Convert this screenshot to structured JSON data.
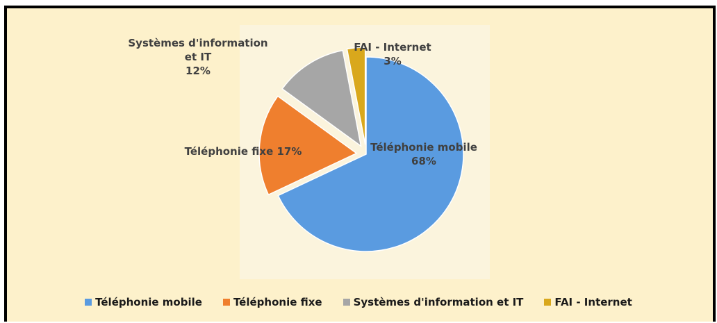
{
  "chart_data": {
    "type": "pie",
    "categories": [
      "Téléphonie mobile",
      "Téléphonie fixe",
      "Systèmes d'information et IT",
      "FAI - Internet"
    ],
    "values": [
      68,
      17,
      12,
      3
    ],
    "value_labels": [
      "68%",
      "17%",
      "12%",
      "3%"
    ],
    "colors": [
      "#5a9be0",
      "#ef7f2e",
      "#a6a6a6",
      "#d9a81c"
    ],
    "legend": "bottom"
  }
}
